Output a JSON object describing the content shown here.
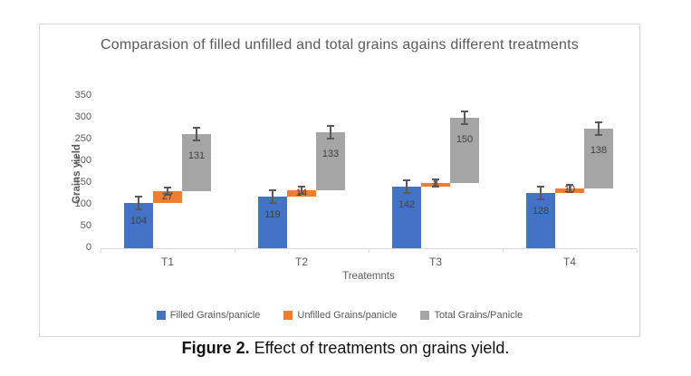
{
  "figure": {
    "caption": {
      "label": "Figure 2.",
      "text": "Effect of treatments on grains yield."
    }
  },
  "chart_data": {
    "type": "bar",
    "variant": "stacked-floating-columns-with-error-bars",
    "title": "Comparasion of filled unfilled and total grains agains different treatments",
    "xlabel": "Treatemnts",
    "ylabel": "Grains yield",
    "ylim": [
      0,
      350
    ],
    "yticks": [
      0,
      50,
      100,
      150,
      200,
      250,
      300,
      350
    ],
    "grid": false,
    "legend_position": "bottom",
    "categories": [
      "T1",
      "T2",
      "T3",
      "T4"
    ],
    "series": [
      {
        "key": "filled",
        "name": "Filled Grains/panicle",
        "color": "#4472C4",
        "values": [
          104,
          119,
          142,
          128
        ]
      },
      {
        "key": "unfilled",
        "name": "Unfilled Grains/panicle",
        "color": "#ED7D31",
        "values": [
          27,
          14,
          8,
          10
        ]
      },
      {
        "key": "total",
        "name": "Total Grains/Panicle",
        "color": "#A5A5A5",
        "values": [
          131,
          133,
          150,
          138
        ]
      }
    ],
    "stacked": true,
    "error_bars": true,
    "data_labels": true
  },
  "colors": {
    "background": "#FFFFFF",
    "frame_border": "#D9D9D9",
    "axis_line": "#D9D9D9",
    "text_muted": "#595959",
    "bar_label": "#404040",
    "error_bar": "#595959"
  }
}
